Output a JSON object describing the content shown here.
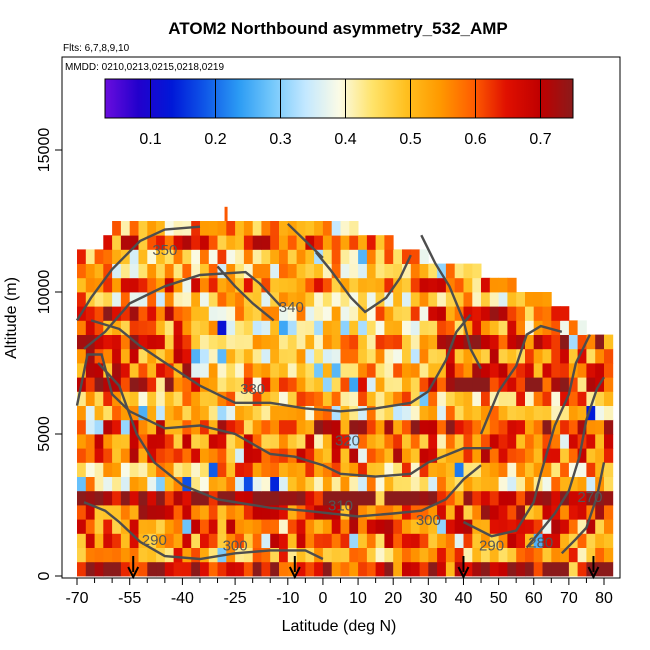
{
  "chart_data": {
    "type": "heatmap",
    "title": "ATOM2 Northbound asymmetry_532_AMP",
    "annotations": {
      "flights": "Flts: 6,7,8,9,10",
      "dates": "MMDD: 0210,0213,0215,0218,0219"
    },
    "xlabel": "Latitude (deg N)",
    "ylabel": "Altitude (m)",
    "xlim": [
      -70,
      85
    ],
    "ylim": [
      0,
      18000
    ],
    "x_ticks": [
      -70,
      -55,
      -40,
      -25,
      -10,
      0,
      10,
      20,
      30,
      40,
      50,
      60,
      70,
      80
    ],
    "y_ticks": [
      0,
      5000,
      10000,
      15000
    ],
    "grid": false,
    "colorbar": {
      "placement": "top-inside",
      "range": [
        0.03,
        0.75
      ],
      "ticks": [
        0.1,
        0.2,
        0.3,
        0.4,
        0.5,
        0.6,
        0.7
      ],
      "colors": [
        "#6a0dde",
        "#2200cc",
        "#0018d8",
        "#0f57e8",
        "#2b9bf4",
        "#74c8fb",
        "#c3e8ff",
        "#fbfbe6",
        "#ffe36a",
        "#ffc020",
        "#ff9a00",
        "#ff5f00",
        "#e01000",
        "#c00000",
        "#8b1a1a"
      ]
    },
    "altitude_extent": [
      {
        "lat": -70,
        "top": 11500
      },
      {
        "lat": -65,
        "top": 11500
      },
      {
        "lat": -60,
        "top": 12500
      },
      {
        "lat": -35,
        "top": 12500
      },
      {
        "lat": -10,
        "top": 12500
      },
      {
        "lat": 10,
        "top": 12500
      },
      {
        "lat": 30,
        "top": 11500
      },
      {
        "lat": 45,
        "top": 11000
      },
      {
        "lat": 55,
        "top": 10500
      },
      {
        "lat": 65,
        "top": 10000
      },
      {
        "lat": 75,
        "top": 9000
      },
      {
        "lat": 82,
        "top": 8500
      }
    ],
    "contour_labels": [
      {
        "label": "350",
        "lat": -45,
        "alt": 11300
      },
      {
        "label": "340",
        "lat": -9,
        "alt": 9300
      },
      {
        "label": "330",
        "lat": -20,
        "alt": 6400
      },
      {
        "label": "320",
        "lat": 7,
        "alt": 4600
      },
      {
        "label": "310",
        "lat": 5,
        "alt": 2300
      },
      {
        "label": "300",
        "lat": -25,
        "alt": 900
      },
      {
        "label": "300",
        "lat": 30,
        "alt": 1800
      },
      {
        "label": "290",
        "lat": -48,
        "alt": 1100
      },
      {
        "label": "290",
        "lat": 48,
        "alt": 900
      },
      {
        "label": "280",
        "lat": 62,
        "alt": 1000
      },
      {
        "label": "270",
        "lat": 76,
        "alt": 2600
      }
    ],
    "markers": {
      "type": "down-arrow",
      "latitudes": [
        -54,
        -8,
        40,
        77
      ]
    }
  }
}
